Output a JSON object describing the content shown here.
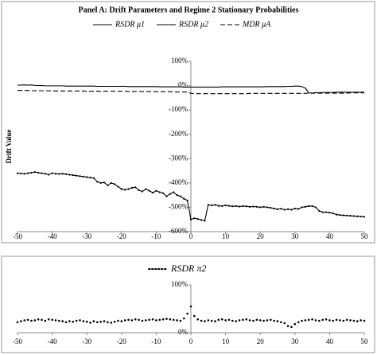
{
  "chart_data": [
    {
      "type": "line",
      "title": "Panel A: Drift Parameters and Regime 2 Stationary Probabilities",
      "y_label": "Drift Value",
      "x": [
        -50,
        -49,
        -48,
        -47,
        -46,
        -45,
        -44,
        -43,
        -42,
        -41,
        -40,
        -39,
        -38,
        -37,
        -36,
        -35,
        -34,
        -33,
        -32,
        -31,
        -30,
        -29,
        -28,
        -27,
        -26,
        -25,
        -24,
        -23,
        -22,
        -21,
        -20,
        -19,
        -18,
        -17,
        -16,
        -15,
        -14,
        -13,
        -12,
        -11,
        -10,
        -9,
        -8,
        -7,
        -6,
        -5,
        -4,
        -3,
        -2,
        -1,
        0,
        1,
        2,
        3,
        4,
        5,
        6,
        7,
        8,
        9,
        10,
        11,
        12,
        13,
        14,
        15,
        16,
        17,
        18,
        19,
        20,
        21,
        22,
        23,
        24,
        25,
        26,
        27,
        28,
        29,
        30,
        31,
        32,
        33,
        34,
        35,
        36,
        37,
        38,
        39,
        40,
        41,
        42,
        43,
        44,
        45,
        46,
        47,
        48,
        49,
        50
      ],
      "series": [
        {
          "name": "RSDR μ1",
          "color": "#000000",
          "style": "solid",
          "values": [
            2,
            2,
            3,
            2,
            3,
            1,
            0,
            0,
            -1,
            -1,
            -1,
            -1,
            -1,
            -1,
            -2,
            -2,
            -2,
            -2,
            -2,
            -2,
            -2,
            -2,
            -2,
            -3,
            -3,
            -3,
            -3,
            -3,
            -3,
            -3,
            -3,
            -3,
            -4,
            -4,
            -4,
            -4,
            -4,
            -4,
            -4,
            -4,
            -4,
            -5,
            -5,
            -5,
            -5,
            -5,
            -5,
            -5,
            -6,
            -6,
            -6,
            -6,
            -6,
            -6,
            -6,
            -6,
            -6,
            -6,
            -6,
            -5,
            -5,
            -5,
            -5,
            -5,
            -5,
            -5,
            -5,
            -5,
            -5,
            -5,
            -5,
            -5,
            -4,
            -4,
            -4,
            -4,
            -4,
            -4,
            -3,
            -3,
            -2,
            -2,
            -4,
            -10,
            -30,
            -30,
            -29,
            -29,
            -28,
            -28,
            -28,
            -28,
            -27,
            -27,
            -27,
            -27,
            -27,
            -27,
            -27,
            -27,
            -26
          ]
        },
        {
          "name": "RSDR μ2",
          "color": "#000000",
          "style": "line-markers",
          "values": [
            -360,
            -361,
            -362,
            -360,
            -358,
            -355,
            -358,
            -360,
            -362,
            -366,
            -360,
            -362,
            -363,
            -362,
            -364,
            -366,
            -368,
            -370,
            -372,
            -374,
            -376,
            -378,
            -380,
            -395,
            -400,
            -398,
            -410,
            -400,
            -405,
            -415,
            -425,
            -428,
            -425,
            -420,
            -418,
            -430,
            -435,
            -425,
            -432,
            -440,
            -432,
            -438,
            -442,
            -455,
            -445,
            -438,
            -450,
            -455,
            -465,
            -472,
            -550,
            -545,
            -548,
            -552,
            -555,
            -490,
            -492,
            -490,
            -494,
            -495,
            -492,
            -494,
            -496,
            -495,
            -497,
            -495,
            -496,
            -498,
            -497,
            -498,
            -500,
            -498,
            -500,
            -502,
            -505,
            -508,
            -506,
            -510,
            -508,
            -510,
            -505,
            -507,
            -500,
            -498,
            -495,
            -495,
            -500,
            -515,
            -520,
            -520,
            -522,
            -525,
            -530,
            -532,
            -533,
            -534,
            -535,
            -536,
            -537,
            -538,
            -539
          ]
        },
        {
          "name": "MDR μA",
          "color": "#000000",
          "style": "dashed",
          "values": [
            -20,
            -20,
            -20,
            -20,
            -21,
            -21,
            -21,
            -21,
            -21,
            -21,
            -22,
            -22,
            -22,
            -22,
            -22,
            -22,
            -22,
            -22,
            -22,
            -22,
            -23,
            -23,
            -23,
            -23,
            -23,
            -23,
            -23,
            -23,
            -23,
            -23,
            -23,
            -23,
            -24,
            -24,
            -24,
            -24,
            -24,
            -24,
            -24,
            -24,
            -25,
            -25,
            -25,
            -25,
            -25,
            -25,
            -26,
            -26,
            -26,
            -26,
            -32,
            -33,
            -33,
            -33,
            -33,
            -33,
            -33,
            -33,
            -33,
            -33,
            -33,
            -33,
            -33,
            -33,
            -33,
            -33,
            -33,
            -32,
            -32,
            -32,
            -32,
            -32,
            -32,
            -32,
            -32,
            -32,
            -32,
            -32,
            -32,
            -32,
            -32,
            -32,
            -32,
            -32,
            -31,
            -31,
            -31,
            -31,
            -31,
            -31,
            -31,
            -31,
            -31,
            -31,
            -31,
            -31,
            -30,
            -30,
            -30,
            -30,
            -30
          ]
        }
      ],
      "xlim": [
        -50,
        50
      ],
      "xticks": [
        -50,
        -40,
        -30,
        -20,
        -10,
        0,
        10,
        20,
        30,
        40,
        50
      ],
      "ylim": [
        -600,
        100
      ],
      "yticks": [
        {
          "value": -600,
          "label": "-600%"
        },
        {
          "value": -500,
          "label": "-500%"
        },
        {
          "value": -400,
          "label": "-400%"
        },
        {
          "value": -300,
          "label": "-300%"
        },
        {
          "value": -200,
          "label": "-200%"
        },
        {
          "value": -100,
          "label": "-100%"
        },
        {
          "value": 0,
          "label": "0%"
        },
        {
          "value": 100,
          "label": "100%"
        }
      ],
      "legend": "top"
    },
    {
      "type": "line",
      "x": [
        -50,
        -49,
        -48,
        -47,
        -46,
        -45,
        -44,
        -43,
        -42,
        -41,
        -40,
        -39,
        -38,
        -37,
        -36,
        -35,
        -34,
        -33,
        -32,
        -31,
        -30,
        -29,
        -28,
        -27,
        -26,
        -25,
        -24,
        -23,
        -22,
        -21,
        -20,
        -19,
        -18,
        -17,
        -16,
        -15,
        -14,
        -13,
        -12,
        -11,
        -10,
        -9,
        -8,
        -7,
        -6,
        -5,
        -4,
        -3,
        -2,
        -1,
        0,
        1,
        2,
        3,
        4,
        5,
        6,
        7,
        8,
        9,
        10,
        11,
        12,
        13,
        14,
        15,
        16,
        17,
        18,
        19,
        20,
        21,
        22,
        23,
        24,
        25,
        26,
        27,
        28,
        29,
        30,
        31,
        32,
        33,
        34,
        35,
        36,
        37,
        38,
        39,
        40,
        41,
        42,
        43,
        44,
        45,
        46,
        47,
        48,
        49,
        50
      ],
      "series": [
        {
          "name": "RSDR π2",
          "color": "#000000",
          "style": "markers",
          "values": [
            22,
            24,
            26,
            27,
            25,
            26,
            28,
            27,
            25,
            28,
            27,
            26,
            25,
            24,
            22,
            24,
            23,
            25,
            26,
            24,
            23,
            21,
            24,
            22,
            23,
            24,
            22,
            21,
            23,
            25,
            24,
            26,
            27,
            26,
            28,
            27,
            25,
            26,
            27,
            28,
            26,
            27,
            28,
            29,
            28,
            27,
            26,
            25,
            30,
            40,
            55,
            35,
            28,
            25,
            24,
            26,
            25,
            24,
            27,
            28,
            26,
            27,
            25,
            24,
            26,
            27,
            28,
            26,
            25,
            27,
            26,
            25,
            26,
            27,
            25,
            24,
            22,
            20,
            14,
            12,
            18,
            22,
            25,
            26,
            27,
            28,
            26,
            25,
            27,
            28,
            26,
            25,
            27,
            26,
            25,
            27,
            26,
            25,
            24,
            26,
            25
          ]
        }
      ],
      "xlim": [
        -50,
        50
      ],
      "xticks": [
        -50,
        -40,
        -30,
        -20,
        -10,
        0,
        10,
        20,
        30,
        40,
        50
      ],
      "ylim": [
        0,
        100
      ],
      "yticks": [
        {
          "value": 0,
          "label": "0%"
        },
        {
          "value": 100,
          "label": "100%"
        }
      ],
      "legend": "top"
    }
  ]
}
